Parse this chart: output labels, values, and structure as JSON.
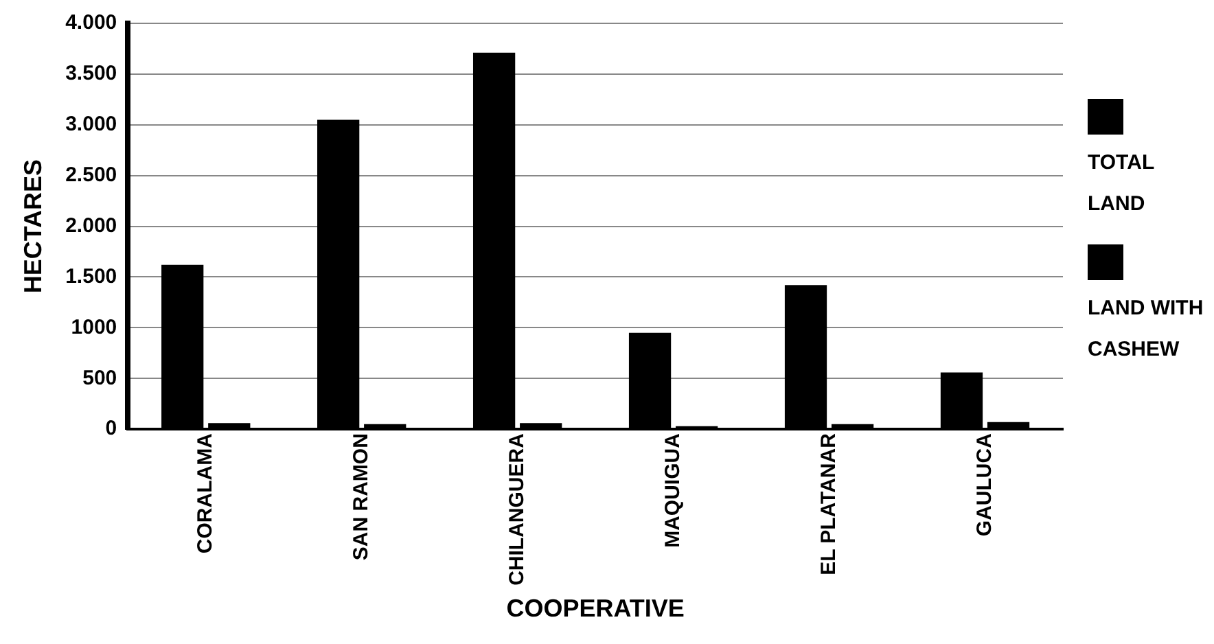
{
  "chart_data": {
    "type": "bar",
    "xlabel": "COOPERATIVE",
    "ylabel": "HECTARES",
    "categories": [
      "CORALAMA",
      "SAN RAMON",
      "CHILANGUERA",
      "MAQUIGUA",
      "EL PLATANAR",
      "GAULUCA"
    ],
    "series": [
      {
        "name": "TOTAL LAND",
        "color": "#000000",
        "values": [
          1620,
          3050,
          3710,
          950,
          1420,
          560
        ]
      },
      {
        "name": "LAND WITH CASHEW",
        "color": "#000000",
        "values": [
          60,
          50,
          60,
          30,
          50,
          70
        ]
      }
    ],
    "ylim": [
      0,
      4000
    ],
    "yticks": [
      0,
      500,
      {
        "value": 1000,
        "label": "1000"
      },
      {
        "value": 1500,
        "label": "1.500"
      },
      {
        "value": 2000,
        "label": "2.000"
      },
      {
        "value": 2500,
        "label": "2.500"
      },
      {
        "value": 3000,
        "label": "3.000"
      },
      {
        "value": 3500,
        "label": "3.500"
      },
      {
        "value": 4000,
        "label": "4.000"
      }
    ],
    "grid": "y",
    "legend": "right"
  }
}
